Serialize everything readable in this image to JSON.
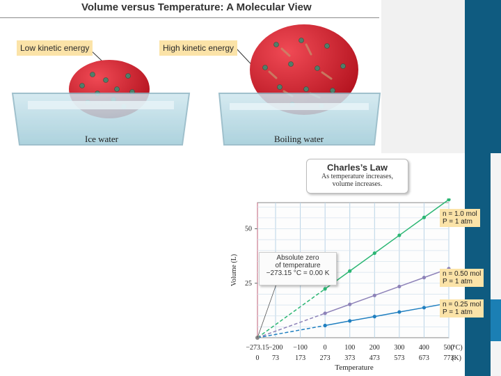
{
  "header": {
    "title": "Volume versus Temperature: A Molecular View"
  },
  "illustration": {
    "low_label": "Low kinetic energy",
    "high_label": "High kinetic energy",
    "ice_caption": "Ice water",
    "boil_caption": "Boiling water"
  },
  "law_box": {
    "title": "Charles’s Law",
    "line1": "As temperature increases,",
    "line2": "volume increases."
  },
  "absolute_zero_box": {
    "line1": "Absolute zero",
    "line2": "of temperature",
    "line3": "−273.15 °C = 0.00 K"
  },
  "series_labels": [
    {
      "line1": "n = 1.0 mol",
      "line2": "P = 1 atm"
    },
    {
      "line1": "n = 0.50 mol",
      "line2": "P = 1 atm"
    },
    {
      "line1": "n = 0.25 mol",
      "line2": "P = 1 atm"
    }
  ],
  "colors": {
    "sidebar": "#0f5b80",
    "balloon": "#d8202e",
    "series_1": "#2bb673",
    "series_2": "#8d82b8",
    "series_3": "#1f7fc0",
    "callout_bg": "#fbe3a8"
  },
  "chart_data": {
    "type": "line",
    "xlabel": "Temperature",
    "ylabel": "Volume (L)",
    "x_ticks_c": [
      "−273.15",
      "−200",
      "−100",
      "0",
      "100",
      "200",
      "300",
      "400",
      "500"
    ],
    "x_ticks_k": [
      "0",
      "73",
      "173",
      "273",
      "373",
      "473",
      "573",
      "673",
      "773"
    ],
    "x_unit_c": "(°C)",
    "x_unit_k": "(K)",
    "y_ticks": [
      "25",
      "50"
    ],
    "xlim": [
      -273.15,
      500
    ],
    "ylim": [
      0,
      62
    ],
    "series": [
      {
        "name": "n = 1.0 mol",
        "color": "#2bb673",
        "x": [
          0,
          100,
          200,
          300,
          400,
          500
        ],
        "y": [
          22.4,
          30.6,
          38.8,
          47.0,
          55.2,
          63.4
        ]
      },
      {
        "name": "n = 0.50 mol",
        "color": "#8d82b8",
        "x": [
          0,
          100,
          200,
          300,
          400,
          500
        ],
        "y": [
          11.2,
          15.3,
          19.4,
          23.5,
          27.6,
          31.7
        ]
      },
      {
        "name": "n = 0.25 mol",
        "color": "#1f7fc0",
        "x": [
          0,
          100,
          200,
          300,
          400,
          500
        ],
        "y": [
          5.6,
          7.7,
          9.7,
          11.8,
          13.8,
          15.9
        ]
      }
    ]
  }
}
